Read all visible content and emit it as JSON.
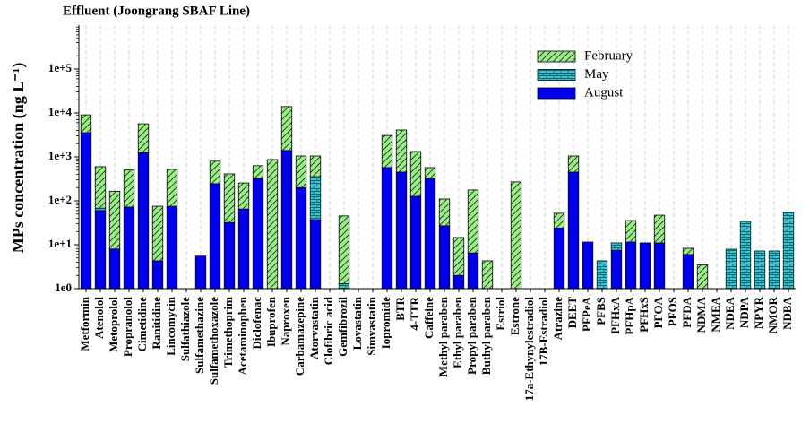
{
  "chart_data": {
    "type": "stacked_bar",
    "title": "Effluent (Joongrang SBAF Line)",
    "y_label": "MPs concentration (ng L⁻¹)",
    "yscale": "log",
    "ylim": [
      1,
      1000000
    ],
    "yticks": [
      {
        "value": 1,
        "label": "1e0"
      },
      {
        "value": 10,
        "label": "1e+1"
      },
      {
        "value": 100,
        "label": "1e+2"
      },
      {
        "value": 1000,
        "label": "1e+3"
      },
      {
        "value": 10000,
        "label": "1e+4"
      },
      {
        "value": 100000,
        "label": "1e+5"
      }
    ],
    "xgrid": true,
    "legend": "upper right",
    "categories": [
      "Metformin",
      "Atenolol",
      "Metoprolol",
      "Propranolol",
      "Cimetidine",
      "Ranitidine",
      "Lincomycin",
      "Sulfathiazole",
      "Sulfamethazine",
      "Sulfamethoxazole",
      "Trimethoprim",
      "Acetaminophen",
      "Diclofenac",
      "Ibuprofen",
      "Naproxen",
      "Carbamazepine",
      "Atorvastatin",
      "Clofibric acid",
      "Gemfibrozil",
      "Lovastatin",
      "Simvastatin",
      "Iopromide",
      "BTR",
      "4-TTR",
      "Caffeine",
      "Methyl paraben",
      "Ethyl paraben",
      "Propyl paraben",
      "Buthyl paraben",
      "Estriol",
      "Estrone",
      "17a-Ethynylestradiol",
      "17B-Estradiol",
      "Atrazine",
      "DEET",
      "PFPeA",
      "PFBS",
      "PFHxA",
      "PFHpA",
      "PFHxS",
      "PFOA",
      "PFOS",
      "PFDA",
      "NDMA",
      "NMEA",
      "NDEA",
      "NDPA",
      "NPYR",
      "NMOR",
      "NDBA"
    ],
    "series": [
      {
        "name": "August",
        "color": "#0000ee",
        "values": [
          3550,
          60,
          8,
          72,
          1260,
          4.3,
          75,
          null,
          5.5,
          245,
          32,
          65,
          325,
          null,
          1400,
          200,
          37,
          null,
          null,
          null,
          null,
          570,
          450,
          126,
          325,
          27,
          2,
          6.5,
          null,
          null,
          null,
          null,
          null,
          24,
          450,
          11.5,
          null,
          7.5,
          11.5,
          11,
          11,
          null,
          6,
          null,
          null,
          null,
          null,
          null,
          null,
          null
        ]
      },
      {
        "name": "May",
        "color": "#33cccc",
        "values": [
          null,
          8,
          null,
          null,
          null,
          null,
          null,
          null,
          null,
          null,
          null,
          null,
          null,
          null,
          null,
          null,
          318,
          null,
          1.3,
          null,
          null,
          null,
          null,
          null,
          null,
          null,
          null,
          null,
          null,
          null,
          null,
          null,
          null,
          null,
          null,
          null,
          4.3,
          3.5,
          null,
          null,
          null,
          null,
          null,
          null,
          null,
          7.9,
          34,
          7.2,
          7.2,
          54
        ]
      },
      {
        "name": "February",
        "color": "#99ee88",
        "values": [
          5500,
          530,
          157,
          430,
          4400,
          71,
          445,
          null,
          null,
          555,
          378,
          190,
          305,
          870,
          12600,
          850,
          695,
          null,
          44,
          null,
          null,
          2500,
          3650,
          1200,
          245,
          83,
          12.6,
          170,
          4.3,
          null,
          270,
          null,
          null,
          28,
          600,
          null,
          null,
          null,
          24,
          null,
          36,
          null,
          2.3,
          3.5,
          null,
          null,
          null,
          null,
          null,
          null
        ]
      }
    ]
  }
}
